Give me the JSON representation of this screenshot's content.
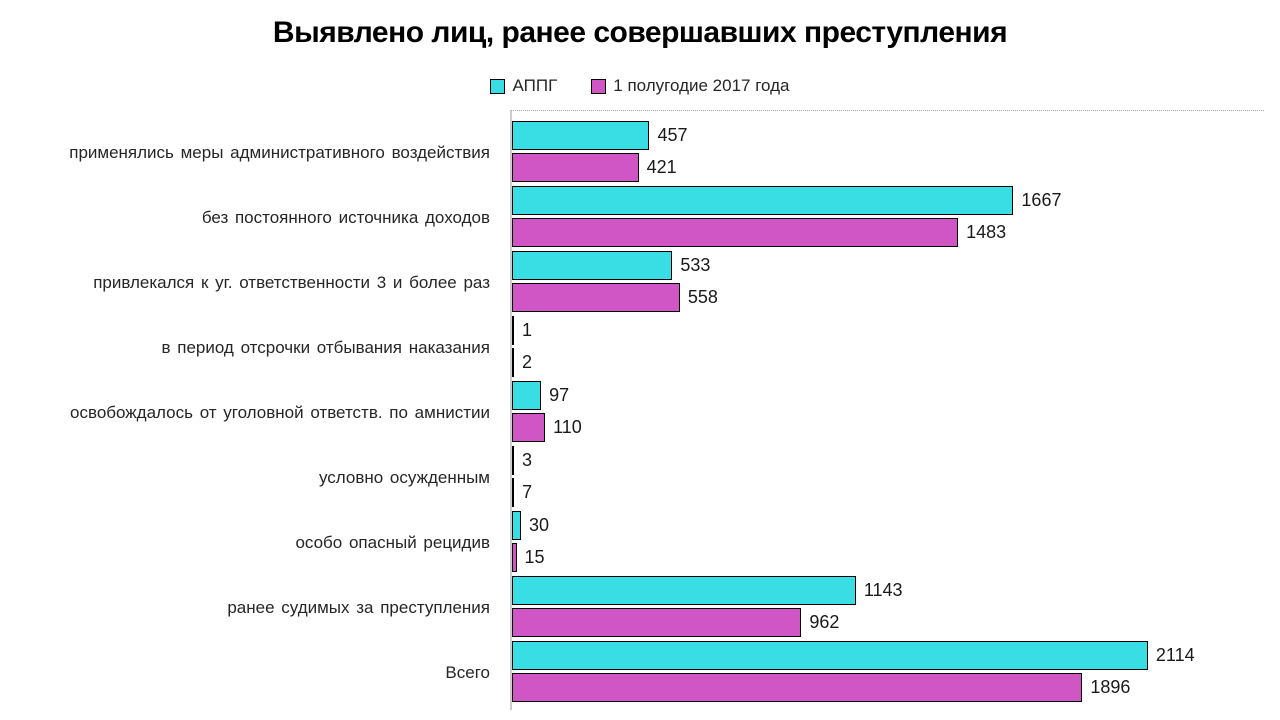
{
  "title": "Выявлено лиц, ранее совершавших преступления",
  "colors": {
    "series_appg": "#39DEE5",
    "series_2017": "#D055C5",
    "bar_border": "#000000",
    "axis_line": "#CCCCCC",
    "text": "#262626"
  },
  "chart_data": {
    "type": "bar",
    "orientation": "horizontal",
    "title": "Выявлено лиц, ранее совершавших преступления",
    "xlabel": "",
    "ylabel": "",
    "xlim": [
      0,
      2500
    ],
    "grid": false,
    "legend_position": "top-center",
    "value_labels": true,
    "categories": [
      "применялись меры административного воздействия",
      "без постоянного источника доходов",
      "привлекался к уг. ответственности 3 и более раз",
      "в период отсрочки отбывания наказания",
      "освобождалось от уголовной ответств. по амнистии",
      "условно осужденным",
      "особо опасный рецидив",
      "ранее судимых за преступления",
      "Всего"
    ],
    "series": [
      {
        "name": "АППГ",
        "color": "#39DEE5",
        "values": [
          457,
          1667,
          533,
          1,
          97,
          3,
          30,
          1143,
          2114
        ]
      },
      {
        "name": "1 полугодие 2017 года",
        "color": "#D055C5",
        "values": [
          421,
          1483,
          558,
          2,
          110,
          7,
          15,
          962,
          1896
        ]
      }
    ]
  }
}
